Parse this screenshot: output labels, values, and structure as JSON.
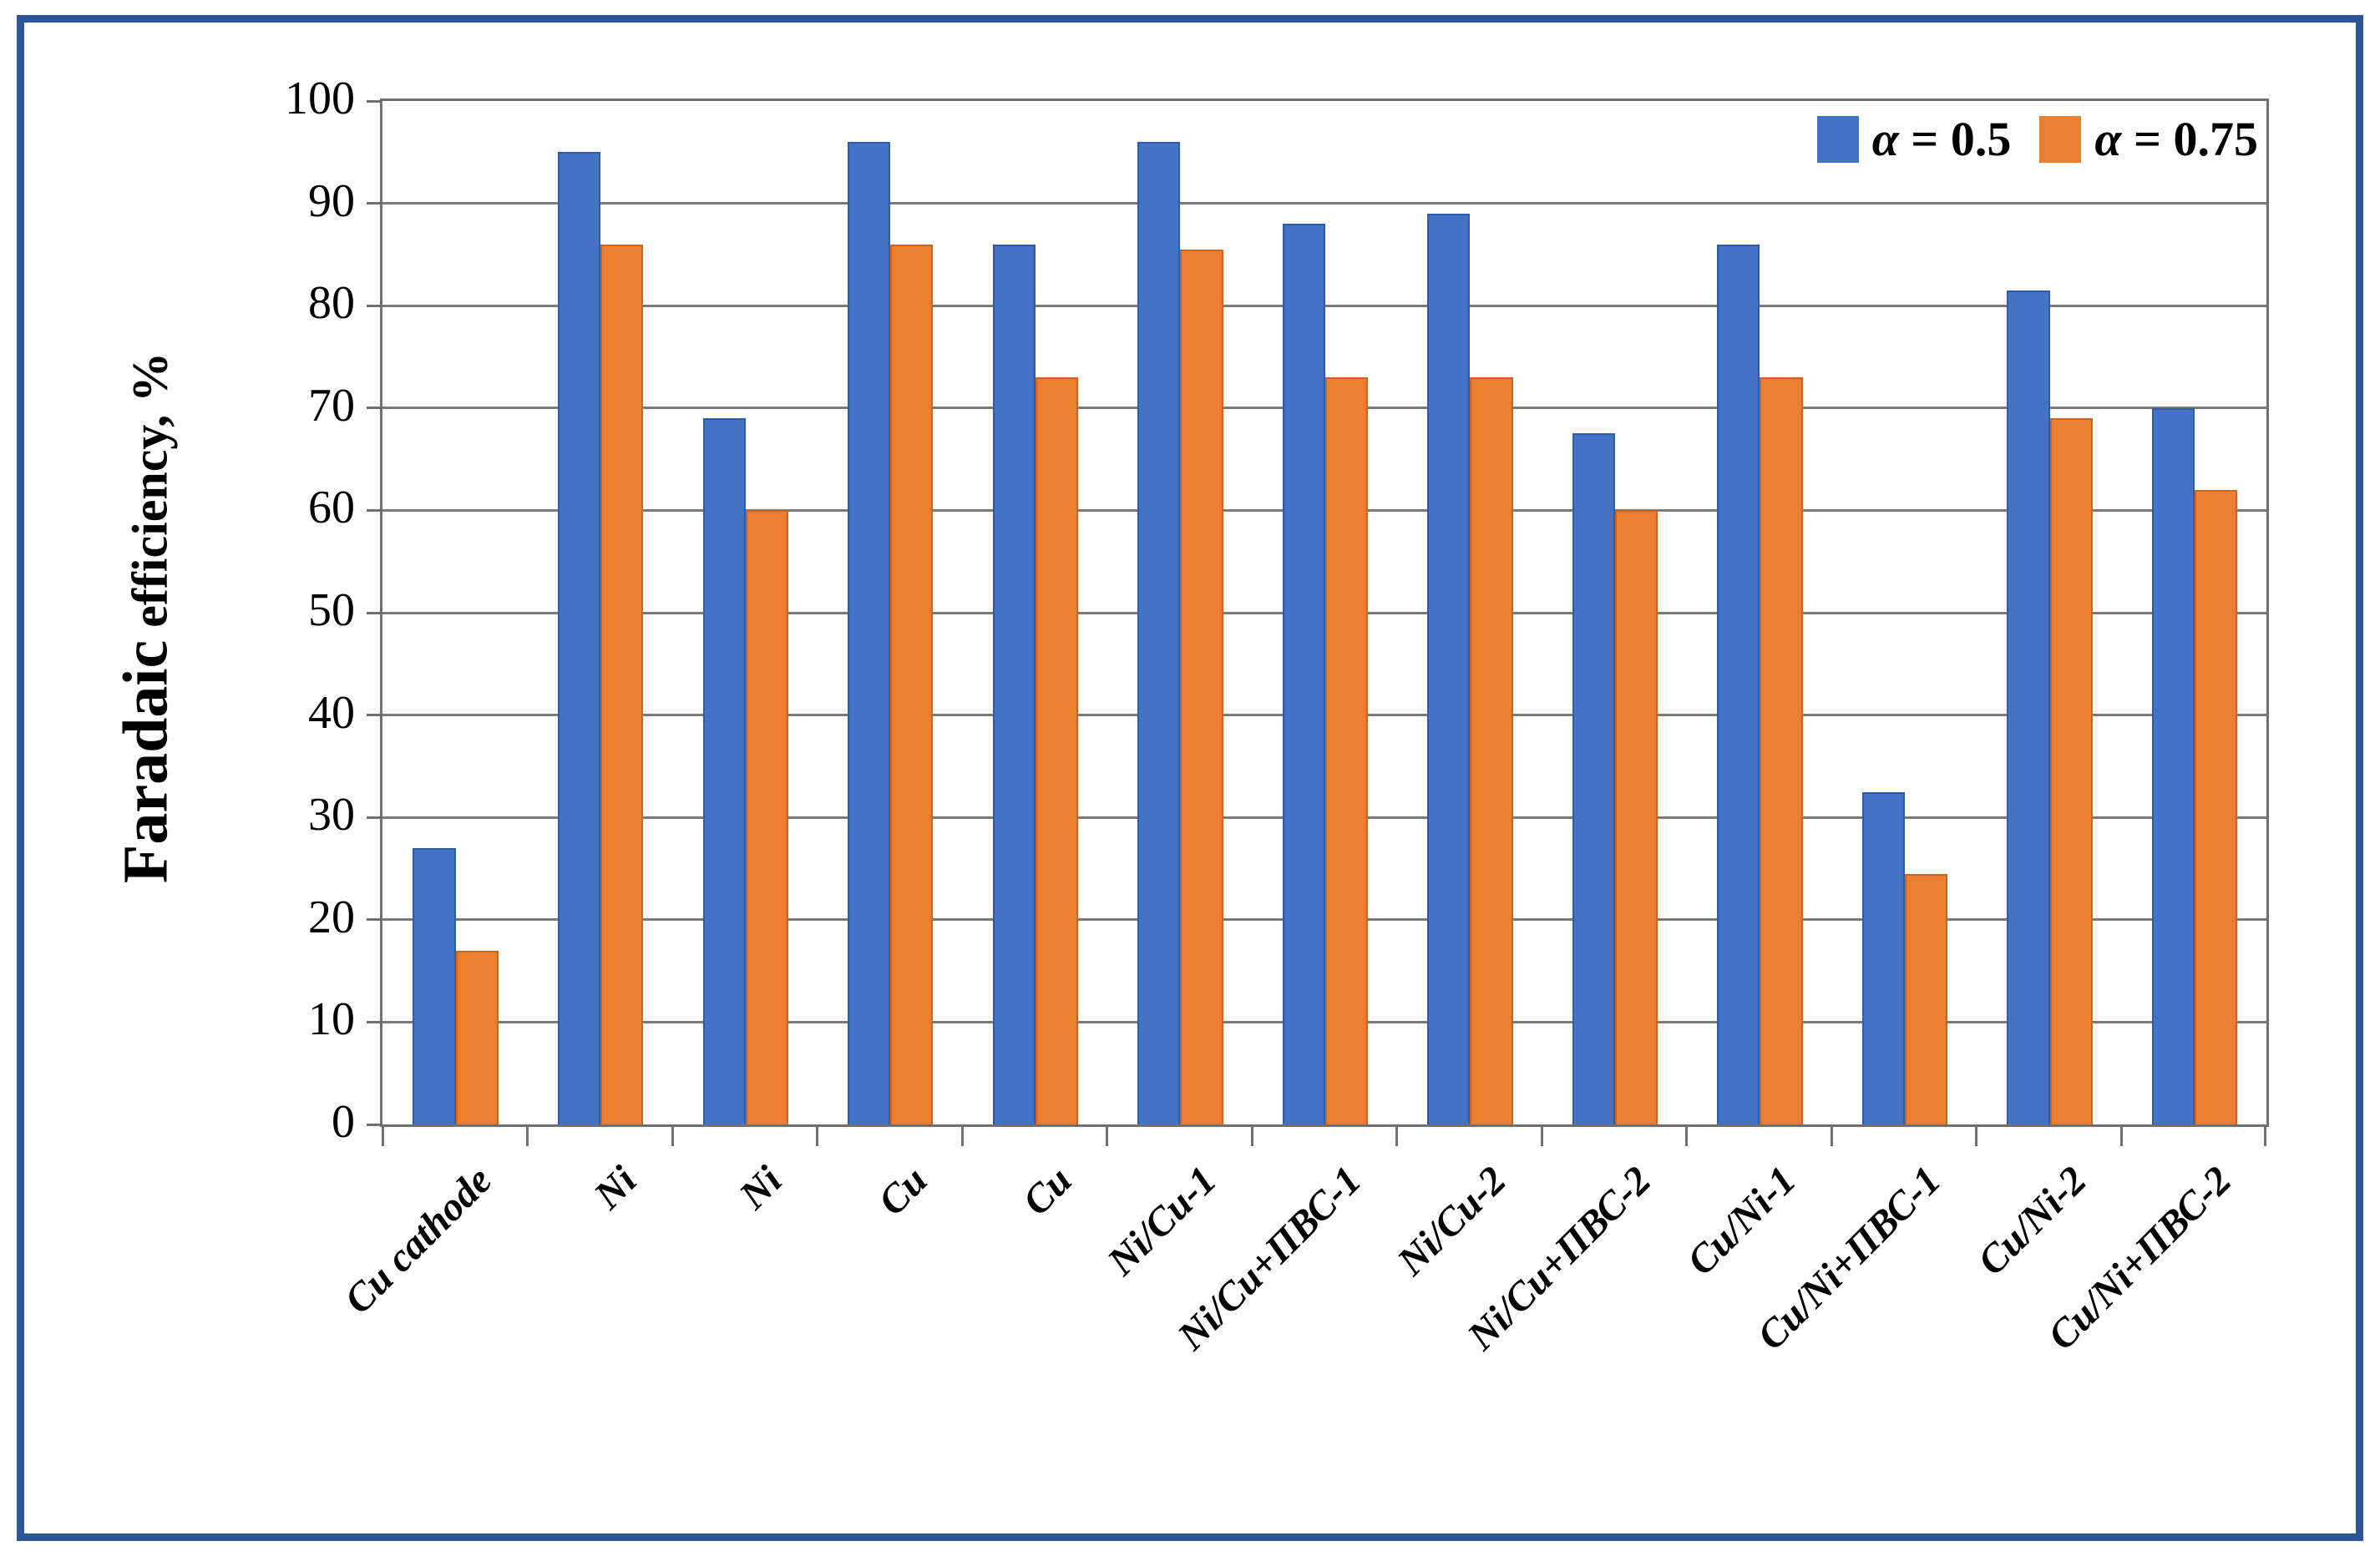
{
  "figure": {
    "frame_color": "#2E5696",
    "background": "#FFFFFF",
    "gridline_color": "#7A7A7A",
    "axis_color": "#6F6F6F"
  },
  "axis": {
    "ylabel_primary": "Faradaic",
    "ylabel_secondary": " efficiency, %"
  },
  "chart_data": {
    "type": "bar",
    "title": "",
    "xlabel": "",
    "ylabel": "Faradaic efficiency, %",
    "ylim": [
      0,
      100
    ],
    "yticks": [
      0,
      10,
      20,
      30,
      40,
      50,
      60,
      70,
      80,
      90,
      100
    ],
    "grid": true,
    "legend_position": "top-right",
    "categories": [
      "Cu cathode",
      "Ni",
      "Ni",
      "Cu",
      "Cu",
      "Ni/Cu-1",
      "Ni/Cu+ПВС-1",
      "Ni/Cu-2",
      "Ni/Cu+ПВС-2",
      "Cu/Ni-1",
      "Cu/Ni+ПВС-1",
      "Cu/Ni-2",
      "Cu/Ni+ПВС-2"
    ],
    "series": [
      {
        "name": "α = 0.5",
        "color": "#4472C4",
        "edge_color": "#2F5BA8",
        "values": [
          27,
          95,
          69,
          96,
          86,
          96,
          88,
          89,
          67.5,
          86,
          32.5,
          81.5,
          70
        ]
      },
      {
        "name": "α = 0.75",
        "color": "#ED7D31",
        "edge_color": "#CB6420",
        "values": [
          17,
          86,
          60,
          86,
          73,
          85.5,
          73,
          73,
          60,
          73,
          24.5,
          69,
          62
        ]
      }
    ]
  }
}
